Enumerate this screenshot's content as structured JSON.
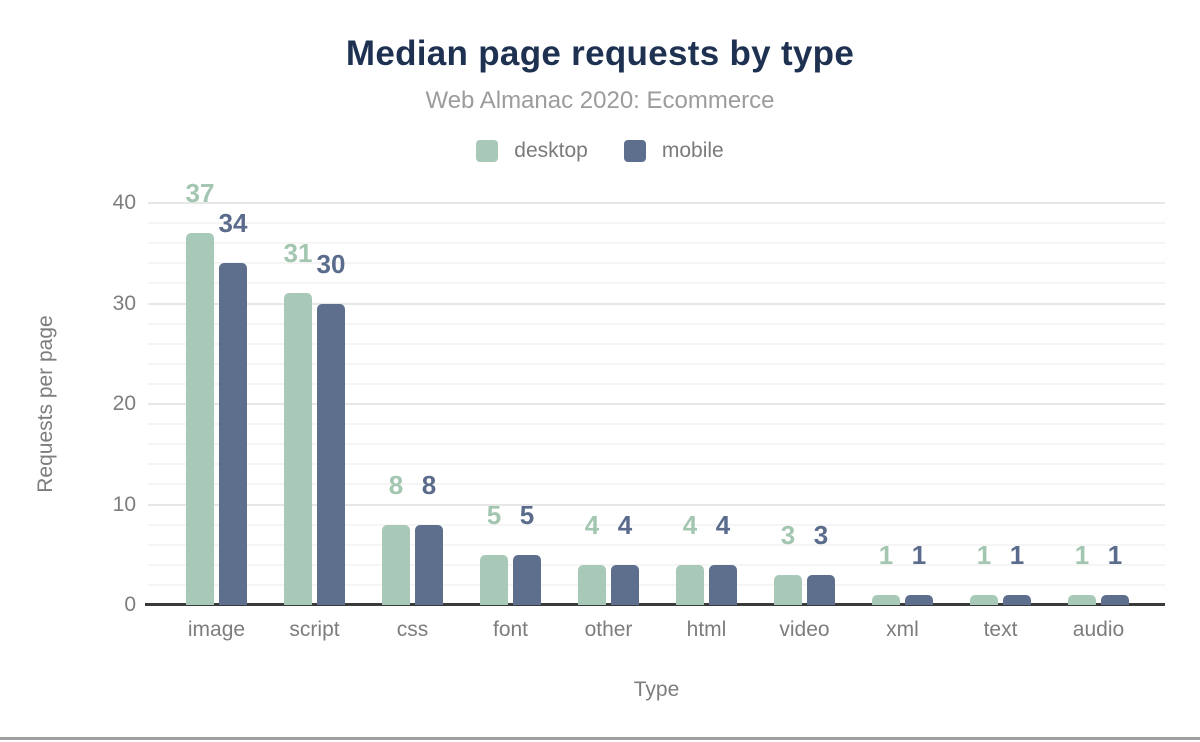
{
  "header": {
    "title": "Median page requests by type",
    "subtitle": "Web Almanac 2020: Ecommerce"
  },
  "axes": {
    "xlabel": "Type",
    "ylabel": "Requests per page"
  },
  "legend": {
    "items": [
      {
        "label": "desktop",
        "color": "#a8c9b7"
      },
      {
        "label": "mobile",
        "color": "#5d6f8d"
      }
    ]
  },
  "chart_data": {
    "type": "bar",
    "title": "Median page requests by type",
    "subtitle": "Web Almanac 2020: Ecommerce",
    "categories": [
      "image",
      "script",
      "css",
      "font",
      "other",
      "html",
      "video",
      "xml",
      "text",
      "audio"
    ],
    "series": [
      {
        "name": "desktop",
        "color": "#a8c9b7",
        "label_color": "#a3c6b1",
        "values": [
          37,
          31,
          8,
          5,
          4,
          4,
          3,
          1,
          1,
          1
        ]
      },
      {
        "name": "mobile",
        "color": "#5d6f8d",
        "label_color": "#5a6b8b",
        "values": [
          34,
          30,
          8,
          5,
          4,
          4,
          3,
          1,
          1,
          1
        ]
      }
    ],
    "xlabel": "Type",
    "ylabel": "Requests per page",
    "ylim": [
      0,
      40
    ],
    "yticks": [
      0,
      10,
      20,
      30,
      40
    ],
    "minor_grid_step": 2,
    "grid": true,
    "legend_position": "top",
    "data_labels": true
  },
  "colors": {
    "title": "#1e3151",
    "subtitle": "#9c9c9c",
    "axis_text": "#7d7d7d",
    "major_grid": "#e7e7e7",
    "minor_grid": "#f5f5f5",
    "axis_line": "#3a3a3a",
    "footer_rule": "#a0a0a0"
  }
}
